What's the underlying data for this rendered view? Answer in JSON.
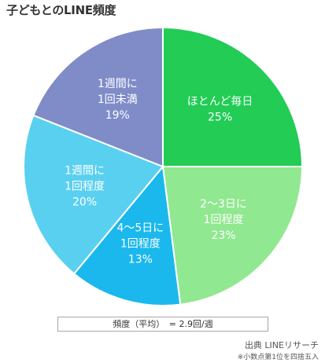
{
  "title": "子どもとのLINE頻度",
  "chart_data": {
    "type": "pie",
    "title": "子どもとのLINE頻度",
    "slices": [
      {
        "label_lines": [
          "ほとんど毎日"
        ],
        "value": 25,
        "value_label": "25%",
        "color": "#22cc55"
      },
      {
        "label_lines": [
          "2～3日に",
          "1回程度"
        ],
        "value": 23,
        "value_label": "23%",
        "color": "#90e890"
      },
      {
        "label_lines": [
          "4～5日に",
          "1回程度"
        ],
        "value": 13,
        "value_label": "13%",
        "color": "#1ab8ec"
      },
      {
        "label_lines": [
          "1週間に",
          "1回程度"
        ],
        "value": 20,
        "value_label": "20%",
        "color": "#5ad0f0"
      },
      {
        "label_lines": [
          "1週間に",
          "1回未満"
        ],
        "value": 19,
        "value_label": "19%",
        "color": "#7f8cc8"
      }
    ],
    "start": "12 o'clock",
    "direction": "clockwise",
    "legend": "none"
  },
  "average": {
    "text": "頻度（平均）　= 2.9回/週"
  },
  "footer": {
    "source": "出典 LINEリサーチ",
    "note": "※小数点第1位を四捨五入"
  }
}
